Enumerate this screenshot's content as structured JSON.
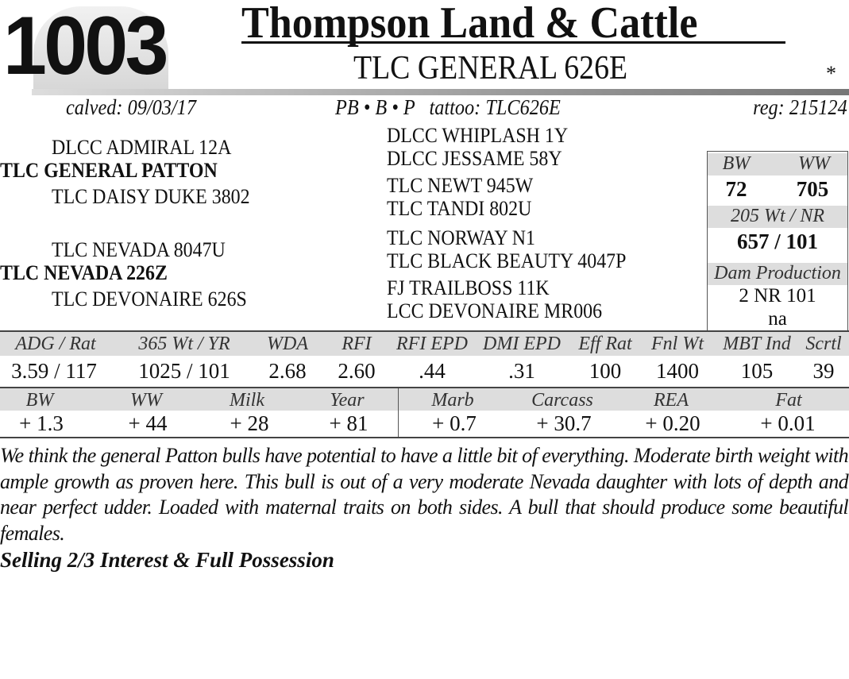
{
  "lot_number": "1003",
  "consignor": "Thompson Land & Cattle",
  "animal_name": "TLC GENERAL 626E",
  "marker": "*",
  "info": {
    "calved": "calved: 09/03/17",
    "breed_tattoo": "PB • B • P   tattoo: TLC626E",
    "reg": "reg: 215124"
  },
  "pedigree": {
    "sire_sire": "DLCC ADMIRAL 12A",
    "sire": "TLC GENERAL PATTON",
    "sire_dam": "TLC DAISY DUKE 3802",
    "dam_sire": "TLC NEVADA 8047U",
    "dam": "TLC NEVADA 226Z",
    "dam_dam": "TLC DEVONAIRE 626S",
    "great_grandparents": [
      "DLCC WHIPLASH 1Y",
      "DLCC JESSAME 58Y",
      "TLC NEWT 945W",
      "TLC TANDI 802U",
      "TLC NORWAY N1",
      "TLC BLACK BEAUTY 4047P",
      "FJ TRAILBOSS 11K",
      "LCC DEVONAIRE MR006"
    ]
  },
  "performance_box": {
    "bw_label": "BW",
    "ww_label": "WW",
    "bw": "72",
    "ww": "705",
    "wt205_label": "205 Wt / NR",
    "wt205": "657 / 101",
    "dam_prod_label": "Dam Production",
    "dam_prod": "2 NR 101",
    "dam_prod_extra": "na"
  },
  "stats": {
    "headers": [
      "ADG / Rat",
      "365 Wt / YR",
      "WDA",
      "RFI",
      "RFI EPD",
      "DMI EPD",
      "Eff Rat",
      "Fnl Wt",
      "MBT Ind",
      "Scrtl"
    ],
    "values": [
      "3.59 / 117",
      "1025 / 101",
      "2.68",
      "2.60",
      ".44",
      ".31",
      "100",
      "1400",
      "105",
      "39"
    ]
  },
  "epds": {
    "headers": [
      "BW",
      "WW",
      "Milk",
      "Year",
      "Marb",
      "Carcass",
      "REA",
      "Fat"
    ],
    "values": [
      "+ 1.3",
      "+ 44",
      "+ 28",
      "+ 81",
      "+ 0.7",
      "+ 30.7",
      "+ 0.20",
      "+ 0.01"
    ]
  },
  "description": "We think the general Patton bulls have potential to have a little bit of everything. Moderate birth weight with ample growth as proven here. This bull is out of a very moderate Nevada daughter with lots of depth and near perfect udder.   Loaded with maternal traits on both sides.   A bull that should produce some beautiful females.",
  "selling_terms": "Selling 2/3 Interest & Full Possession"
}
